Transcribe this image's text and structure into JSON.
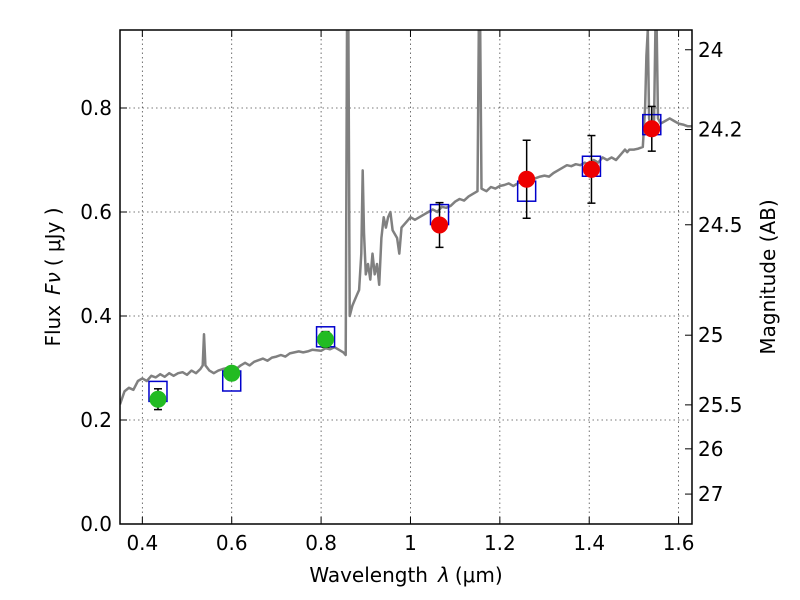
{
  "chart_data": {
    "type": "scatter",
    "title": "",
    "xlabel": "Wavelength",
    "xlabel_symbol": "λ",
    "xlabel_unit": "(μm)",
    "ylabel": "Flux",
    "ylabel_symbol": "Fν",
    "ylabel_unit": "( μJy )",
    "y2label": "Magnitude (AB)",
    "xlim": [
      0.35,
      1.63
    ],
    "ylim": [
      0.0,
      0.95
    ],
    "grid": true,
    "x_ticks": [
      {
        "value": 0.4,
        "label": "0.4"
      },
      {
        "value": 0.6,
        "label": "0.6"
      },
      {
        "value": 0.8,
        "label": "0.8"
      },
      {
        "value": 1.0,
        "label": "1"
      },
      {
        "value": 1.2,
        "label": "1.2"
      },
      {
        "value": 1.4,
        "label": "1.4"
      },
      {
        "value": 1.6,
        "label": "1.6"
      }
    ],
    "y_ticks": [
      {
        "value": 0.0,
        "label": "0.0"
      },
      {
        "value": 0.2,
        "label": "0.2"
      },
      {
        "value": 0.4,
        "label": "0.4"
      },
      {
        "value": 0.6,
        "label": "0.6"
      },
      {
        "value": 0.8,
        "label": "0.8"
      }
    ],
    "mag_ticks": [
      {
        "mag": 24,
        "label": "24"
      },
      {
        "mag": 24.2,
        "label": "24.2"
      },
      {
        "mag": 24.5,
        "label": "24.5"
      },
      {
        "mag": 25,
        "label": "25"
      },
      {
        "mag": 25.5,
        "label": "25.5"
      },
      {
        "mag": 26,
        "label": "26"
      },
      {
        "mag": 27,
        "label": "27"
      }
    ],
    "series": [
      {
        "kind": "line",
        "color": "#808080",
        "points": [
          [
            0.35,
            0.23
          ],
          [
            0.36,
            0.255
          ],
          [
            0.37,
            0.262
          ],
          [
            0.38,
            0.258
          ],
          [
            0.39,
            0.275
          ],
          [
            0.4,
            0.28
          ],
          [
            0.41,
            0.275
          ],
          [
            0.42,
            0.285
          ],
          [
            0.43,
            0.282
          ],
          [
            0.44,
            0.288
          ],
          [
            0.45,
            0.283
          ],
          [
            0.46,
            0.29
          ],
          [
            0.47,
            0.285
          ],
          [
            0.48,
            0.29
          ],
          [
            0.49,
            0.292
          ],
          [
            0.5,
            0.287
          ],
          [
            0.51,
            0.295
          ],
          [
            0.52,
            0.29
          ],
          [
            0.53,
            0.298
          ],
          [
            0.535,
            0.305
          ],
          [
            0.538,
            0.365
          ],
          [
            0.541,
            0.305
          ],
          [
            0.55,
            0.295
          ],
          [
            0.56,
            0.29
          ],
          [
            0.57,
            0.295
          ],
          [
            0.58,
            0.298
          ],
          [
            0.59,
            0.3
          ],
          [
            0.6,
            0.302
          ],
          [
            0.61,
            0.298
          ],
          [
            0.62,
            0.305
          ],
          [
            0.63,
            0.31
          ],
          [
            0.64,
            0.305
          ],
          [
            0.65,
            0.312
          ],
          [
            0.66,
            0.315
          ],
          [
            0.67,
            0.318
          ],
          [
            0.68,
            0.314
          ],
          [
            0.69,
            0.32
          ],
          [
            0.7,
            0.322
          ],
          [
            0.71,
            0.325
          ],
          [
            0.72,
            0.322
          ],
          [
            0.73,
            0.328
          ],
          [
            0.74,
            0.33
          ],
          [
            0.75,
            0.332
          ],
          [
            0.76,
            0.33
          ],
          [
            0.77,
            0.332
          ],
          [
            0.78,
            0.335
          ],
          [
            0.79,
            0.334
          ],
          [
            0.8,
            0.333
          ],
          [
            0.81,
            0.338
          ],
          [
            0.82,
            0.336
          ],
          [
            0.83,
            0.34
          ],
          [
            0.84,
            0.335
          ],
          [
            0.85,
            0.33
          ],
          [
            0.855,
            0.325
          ],
          [
            0.858,
            0.95
          ],
          [
            0.861,
            0.95
          ],
          [
            0.864,
            0.4
          ],
          [
            0.87,
            0.42
          ],
          [
            0.875,
            0.43
          ],
          [
            0.88,
            0.44
          ],
          [
            0.885,
            0.45
          ],
          [
            0.89,
            0.52
          ],
          [
            0.893,
            0.68
          ],
          [
            0.896,
            0.56
          ],
          [
            0.9,
            0.48
          ],
          [
            0.905,
            0.5
          ],
          [
            0.91,
            0.47
          ],
          [
            0.915,
            0.52
          ],
          [
            0.92,
            0.48
          ],
          [
            0.925,
            0.5
          ],
          [
            0.93,
            0.46
          ],
          [
            0.935,
            0.55
          ],
          [
            0.94,
            0.59
          ],
          [
            0.945,
            0.57
          ],
          [
            0.95,
            0.59
          ],
          [
            0.955,
            0.6
          ],
          [
            0.96,
            0.565
          ],
          [
            0.97,
            0.55
          ],
          [
            0.975,
            0.52
          ],
          [
            0.98,
            0.57
          ],
          [
            0.99,
            0.58
          ],
          [
            1.0,
            0.59
          ],
          [
            1.01,
            0.585
          ],
          [
            1.02,
            0.59
          ],
          [
            1.03,
            0.595
          ],
          [
            1.04,
            0.6
          ],
          [
            1.05,
            0.605
          ],
          [
            1.06,
            0.6
          ],
          [
            1.07,
            0.61
          ],
          [
            1.08,
            0.608
          ],
          [
            1.09,
            0.612
          ],
          [
            1.1,
            0.62
          ],
          [
            1.11,
            0.625
          ],
          [
            1.12,
            0.622
          ],
          [
            1.13,
            0.63
          ],
          [
            1.14,
            0.635
          ],
          [
            1.15,
            0.64
          ],
          [
            1.153,
            0.95
          ],
          [
            1.156,
            0.95
          ],
          [
            1.159,
            0.645
          ],
          [
            1.17,
            0.64
          ],
          [
            1.18,
            0.648
          ],
          [
            1.19,
            0.645
          ],
          [
            1.2,
            0.65
          ],
          [
            1.21,
            0.652
          ],
          [
            1.22,
            0.655
          ],
          [
            1.23,
            0.65
          ],
          [
            1.24,
            0.655
          ],
          [
            1.25,
            0.66
          ],
          [
            1.26,
            0.658
          ],
          [
            1.27,
            0.662
          ],
          [
            1.28,
            0.665
          ],
          [
            1.29,
            0.668
          ],
          [
            1.3,
            0.67
          ],
          [
            1.31,
            0.668
          ],
          [
            1.32,
            0.675
          ],
          [
            1.33,
            0.68
          ],
          [
            1.34,
            0.685
          ],
          [
            1.35,
            0.69
          ],
          [
            1.36,
            0.688
          ],
          [
            1.37,
            0.692
          ],
          [
            1.38,
            0.69
          ],
          [
            1.39,
            0.695
          ],
          [
            1.4,
            0.69
          ],
          [
            1.41,
            0.7
          ],
          [
            1.42,
            0.695
          ],
          [
            1.43,
            0.705
          ],
          [
            1.44,
            0.7
          ],
          [
            1.45,
            0.705
          ],
          [
            1.46,
            0.7
          ],
          [
            1.47,
            0.71
          ],
          [
            1.48,
            0.72
          ],
          [
            1.485,
            0.715
          ],
          [
            1.49,
            0.72
          ],
          [
            1.5,
            0.72
          ],
          [
            1.51,
            0.722
          ],
          [
            1.52,
            0.725
          ],
          [
            1.525,
            0.8
          ],
          [
            1.528,
            0.9
          ],
          [
            1.531,
            0.95
          ],
          [
            1.534,
            0.78
          ],
          [
            1.54,
            0.75
          ],
          [
            1.545,
            0.77
          ],
          [
            1.548,
            0.95
          ],
          [
            1.551,
            0.95
          ],
          [
            1.554,
            0.78
          ],
          [
            1.56,
            0.77
          ],
          [
            1.57,
            0.775
          ],
          [
            1.58,
            0.78
          ],
          [
            1.59,
            0.775
          ],
          [
            1.6,
            0.77
          ],
          [
            1.61,
            0.768
          ],
          [
            1.62,
            0.765
          ],
          [
            1.63,
            0.765
          ]
        ]
      },
      {
        "kind": "model_squares",
        "color": "#0000cc",
        "points": [
          [
            0.435,
            0.255
          ],
          [
            0.6,
            0.275
          ],
          [
            0.81,
            0.36
          ],
          [
            1.065,
            0.595
          ],
          [
            1.26,
            0.64
          ],
          [
            1.405,
            0.688
          ],
          [
            1.54,
            0.768
          ]
        ]
      },
      {
        "kind": "observed_green",
        "color": "#22bb22",
        "points": [
          {
            "x": 0.435,
            "y": 0.24,
            "err": 0.02
          },
          {
            "x": 0.6,
            "y": 0.29,
            "err": 0.012
          },
          {
            "x": 0.81,
            "y": 0.355,
            "err": 0.015
          }
        ]
      },
      {
        "kind": "observed_red",
        "color": "#ee0000",
        "points": [
          {
            "x": 1.065,
            "y": 0.575,
            "err": 0.043
          },
          {
            "x": 1.26,
            "y": 0.663,
            "err": 0.075
          },
          {
            "x": 1.405,
            "y": 0.682,
            "err": 0.065
          },
          {
            "x": 1.54,
            "y": 0.76,
            "err": 0.043
          }
        ]
      }
    ]
  }
}
